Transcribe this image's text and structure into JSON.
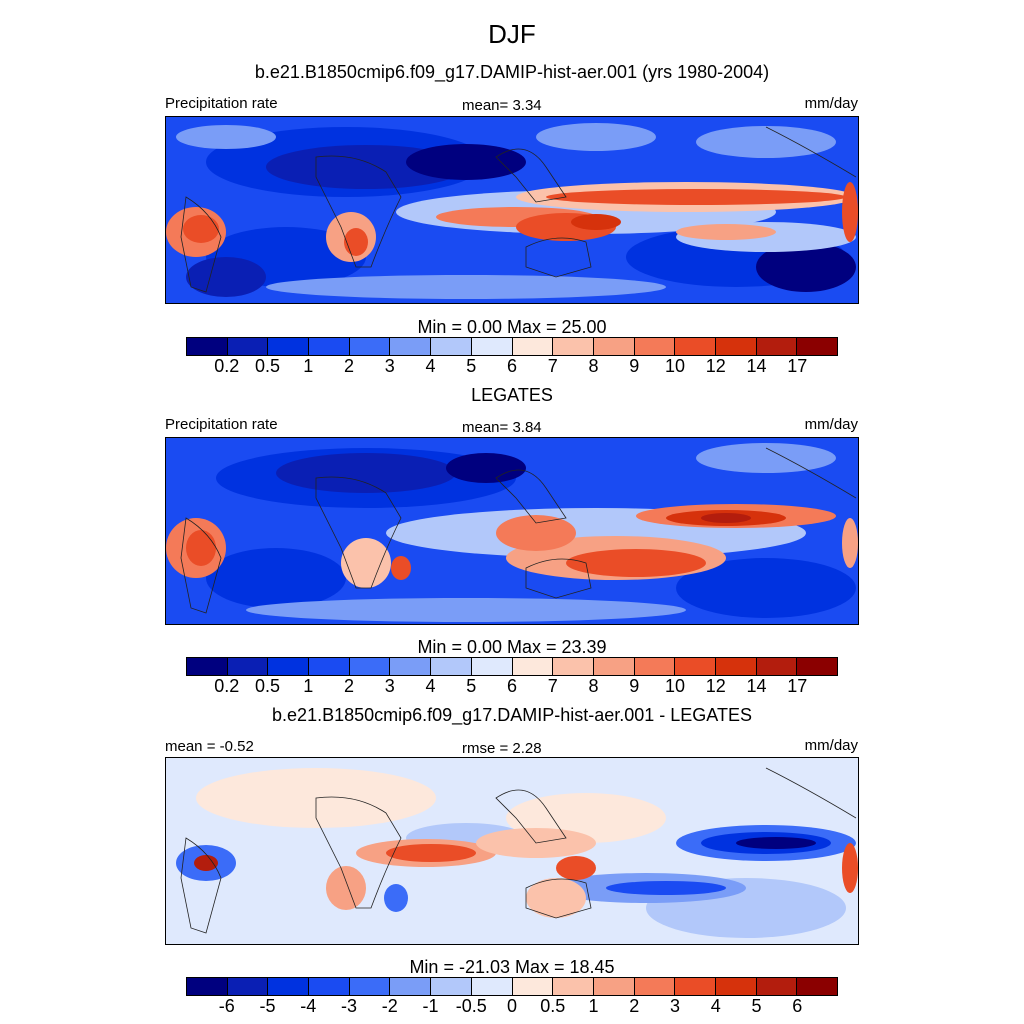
{
  "title": "DJF",
  "palette": [
    "#00007f",
    "#0a1fb4",
    "#0032e0",
    "#1a4bf2",
    "#3b6cf8",
    "#7a9df7",
    "#b2c8fa",
    "#dfe9fd",
    "#fde8dc",
    "#fbc2ab",
    "#f7a184",
    "#f47a58",
    "#ea4d27",
    "#d6320c",
    "#b31d0d",
    "#8b0000"
  ],
  "panels": [
    {
      "case_title": "b.e21.B1850cmip6.f09_g17.DAMIP-hist-aer.001 (yrs 1980-2004)",
      "left_label": "Precipitation rate",
      "center_label": "mean=   3.34",
      "right_label": "mm/day",
      "minmax": "Min =   0.00 Max =  25.00",
      "ticks": [
        "0.2",
        "0.5",
        "1",
        "2",
        "3",
        "4",
        "5",
        "6",
        "7",
        "8",
        "9",
        "10",
        "12",
        "14",
        "17"
      ]
    },
    {
      "case_title": "LEGATES",
      "left_label": "Precipitation rate",
      "center_label": "mean=   3.84",
      "right_label": "mm/day",
      "minmax": "Min =   0.00 Max =  23.39",
      "ticks": [
        "0.2",
        "0.5",
        "1",
        "2",
        "3",
        "4",
        "5",
        "6",
        "7",
        "8",
        "9",
        "10",
        "12",
        "14",
        "17"
      ]
    },
    {
      "case_title": "b.e21.B1850cmip6.f09_g17.DAMIP-hist-aer.001 - LEGATES",
      "left_label": "mean =  -0.52",
      "center_label": "rmse =   2.28",
      "right_label": "mm/day",
      "minmax": "Min = -21.03 Max =  18.45",
      "ticks": [
        "-6",
        "-5",
        "-4",
        "-3",
        "-2",
        "-1",
        "-0.5",
        "0",
        "0.5",
        "1",
        "2",
        "3",
        "4",
        "5",
        "6"
      ]
    }
  ]
}
